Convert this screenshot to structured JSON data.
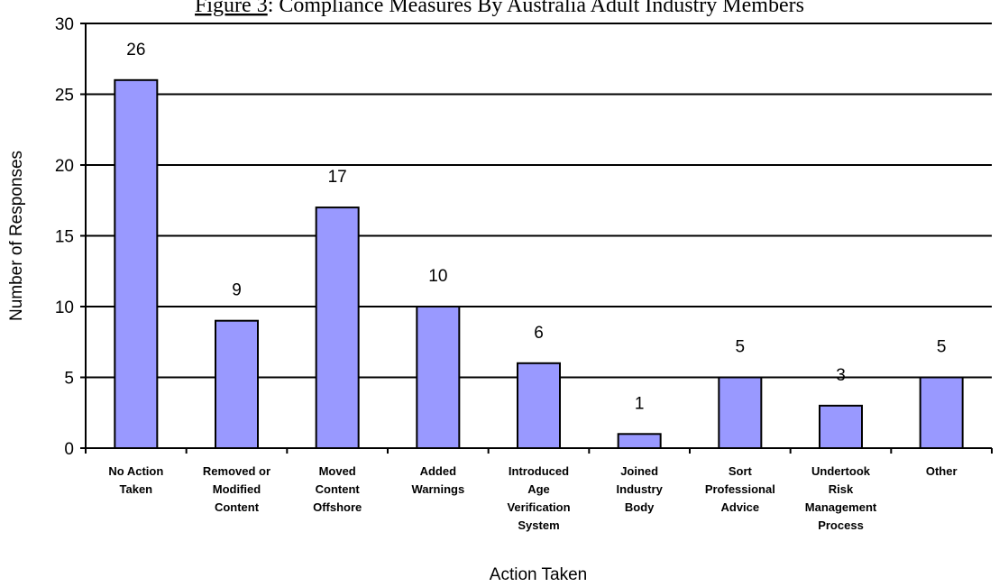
{
  "chart_data": {
    "type": "bar",
    "title_prefix": "Figure 3",
    "title_rest": ": Compliance Measures By Australia Adult Industry Members",
    "xlabel": "Action Taken",
    "ylabel": "Number of Responses",
    "ylim": [
      0,
      30
    ],
    "yticks": [
      0,
      5,
      10,
      15,
      20,
      25,
      30
    ],
    "grid": true,
    "categories": [
      [
        "No Action",
        "Taken"
      ],
      [
        "Removed or",
        "Modified",
        "Content"
      ],
      [
        "Moved",
        "Content",
        "Offshore"
      ],
      [
        "Added",
        "Warnings"
      ],
      [
        "Introduced",
        "Age",
        "Verification",
        "System"
      ],
      [
        "Joined",
        "Industry",
        "Body"
      ],
      [
        "Sort",
        "Professional",
        "Advice"
      ],
      [
        "Undertook",
        "Risk",
        "Management",
        "Process"
      ],
      [
        "Other"
      ]
    ],
    "values": [
      26,
      9,
      17,
      10,
      6,
      1,
      5,
      3,
      5
    ],
    "bar_color": "#9999ff"
  }
}
